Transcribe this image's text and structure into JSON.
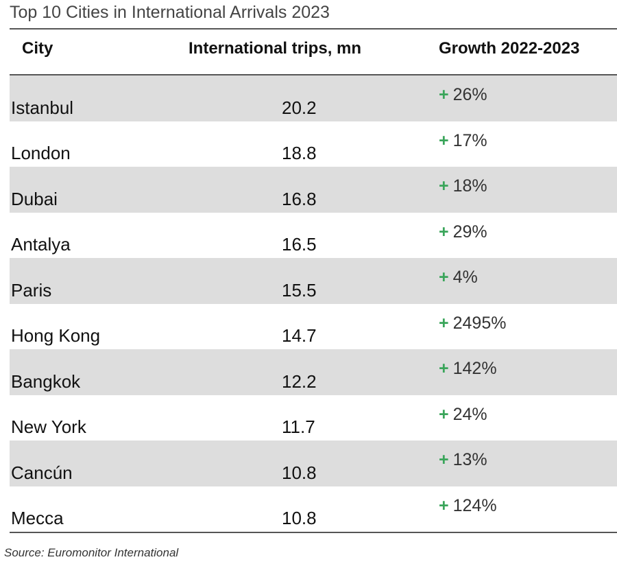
{
  "chart_data": {
    "type": "table",
    "title": "Top 10 Cities in International Arrivals 2023",
    "columns": [
      "City",
      "International trips, mn",
      "Growth 2022-2023"
    ],
    "rows": [
      {
        "city": "Istanbul",
        "trips": "20.2",
        "growth": "26%"
      },
      {
        "city": "London",
        "trips": "18.8",
        "growth": "17%"
      },
      {
        "city": "Dubai",
        "trips": "16.8",
        "growth": "18%"
      },
      {
        "city": "Antalya",
        "trips": "16.5",
        "growth": "29%"
      },
      {
        "city": "Paris",
        "trips": "15.5",
        "growth": "4%"
      },
      {
        "city": "Hong Kong",
        "trips": "14.7",
        "growth": "2495%"
      },
      {
        "city": "Bangkok",
        "trips": "12.2",
        "growth": "142%"
      },
      {
        "city": "New York",
        "trips": "11.7",
        "growth": "24%"
      },
      {
        "city": "Cancún",
        "trips": "10.8",
        "growth": "13%"
      },
      {
        "city": "Mecca",
        "trips": "10.8",
        "growth": "124%"
      }
    ],
    "growth_sign": "+",
    "growth_sign_color": "#3aa55a",
    "shaded_row_color": "#dddddd",
    "source": "Source: Euromonitor International"
  }
}
